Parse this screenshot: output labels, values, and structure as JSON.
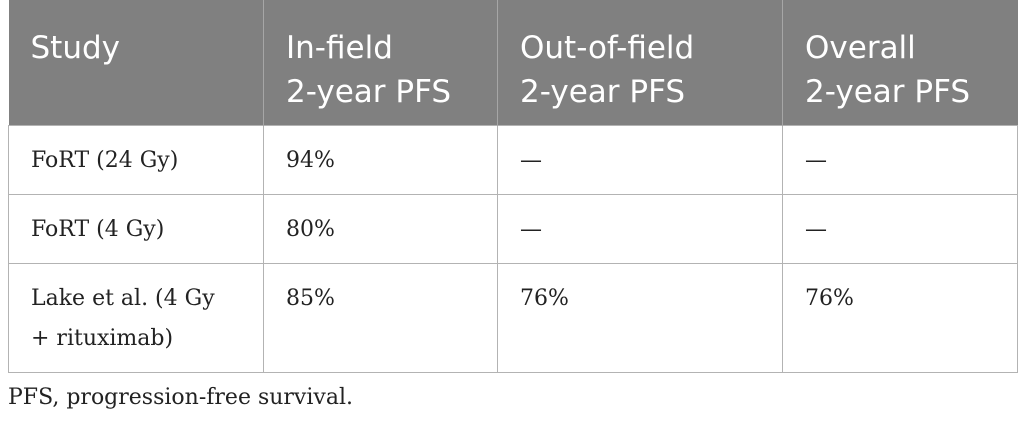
{
  "table": {
    "header": [
      [
        "Study"
      ],
      [
        "In-field",
        "2-year PFS"
      ],
      [
        "Out-of-field",
        "2-year PFS"
      ],
      [
        "Overall",
        "2-year PFS"
      ]
    ],
    "rows": [
      [
        [
          "FoRT (24 Gy)"
        ],
        [
          "94%"
        ],
        [
          "—"
        ],
        [
          "—"
        ]
      ],
      [
        [
          "FoRT (4 Gy)"
        ],
        [
          "80%"
        ],
        [
          "—"
        ],
        [
          "—"
        ]
      ],
      [
        [
          "Lake et al. (4 Gy",
          "+ rituximab)"
        ],
        [
          "85%"
        ],
        [
          "76%"
        ],
        [
          "76%"
        ]
      ]
    ]
  },
  "footnote": "PFS, progression-free survival."
}
